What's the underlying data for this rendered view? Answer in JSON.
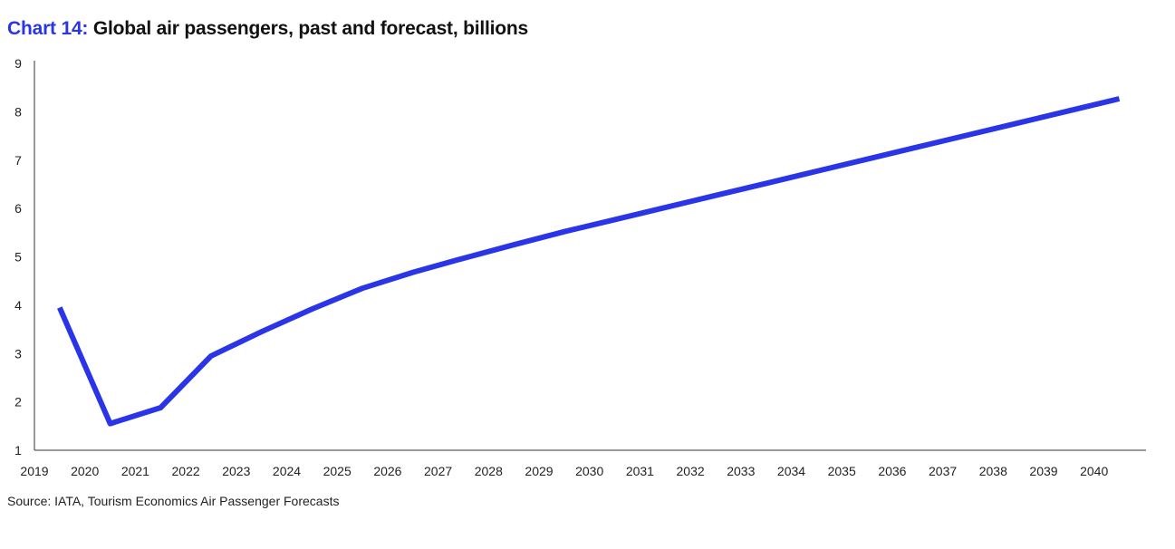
{
  "header": {
    "chart_label": "Chart 14:",
    "title": "Global air passengers, past and forecast, billions"
  },
  "source": "Source: IATA, Tourism Economics Air Passenger Forecasts",
  "colors": {
    "accent": "#2a35e8",
    "axis": "#333333",
    "text": "#111111"
  },
  "chart_data": {
    "type": "line",
    "title": "Global air passengers, past and forecast, billions",
    "xlabel": "",
    "ylabel": "",
    "categories": [
      "2019",
      "2020",
      "2021",
      "2022",
      "2023",
      "2024",
      "2025",
      "2026",
      "2027",
      "2028",
      "2029",
      "2030",
      "2031",
      "2032",
      "2033",
      "2034",
      "2035",
      "2036",
      "2037",
      "2038",
      "2039",
      "2040"
    ],
    "series": [
      {
        "color": "#2a35e8",
        "values": [
          3.95,
          1.55,
          1.88,
          2.95,
          3.45,
          3.92,
          4.35,
          4.68,
          4.97,
          5.25,
          5.52,
          5.77,
          6.02,
          6.27,
          6.52,
          6.77,
          7.02,
          7.27,
          7.52,
          7.77,
          8.02,
          8.27
        ]
      }
    ],
    "y_ticks": [
      "1",
      "2",
      "3",
      "4",
      "5",
      "6",
      "7",
      "8",
      "9"
    ],
    "x_ticks": [
      "2019",
      "2020",
      "2021",
      "2022",
      "2023",
      "2024",
      "2025",
      "2026",
      "2027",
      "2028",
      "2029",
      "2030",
      "2031",
      "2032",
      "2033",
      "2034",
      "2035",
      "2036",
      "2037",
      "2038",
      "2039",
      "2040"
    ],
    "ylim": [
      1,
      9
    ],
    "grid": false,
    "legend": "none"
  }
}
